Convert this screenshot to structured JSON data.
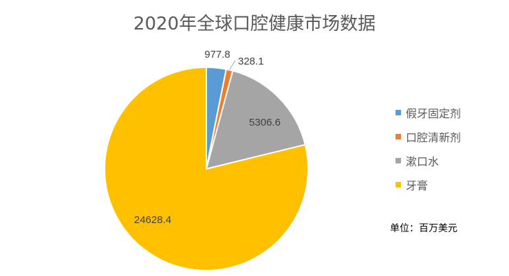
{
  "chart_data": {
    "type": "pie",
    "title": "2020年全球口腔健康市场数据",
    "categories": [
      "假牙固定剂",
      "口腔清新剂",
      "漱口水",
      "牙膏"
    ],
    "values": [
      977.8,
      328.1,
      5306.6,
      24628.4
    ],
    "data_labels": [
      "977.8",
      "328.1",
      "5306.6",
      "24628.4"
    ],
    "colors": [
      "#5B9BD5",
      "#ED7D31",
      "#A5A5A5",
      "#FFC000"
    ],
    "legend_position": "right",
    "unit_note": "单位：百万美元"
  }
}
